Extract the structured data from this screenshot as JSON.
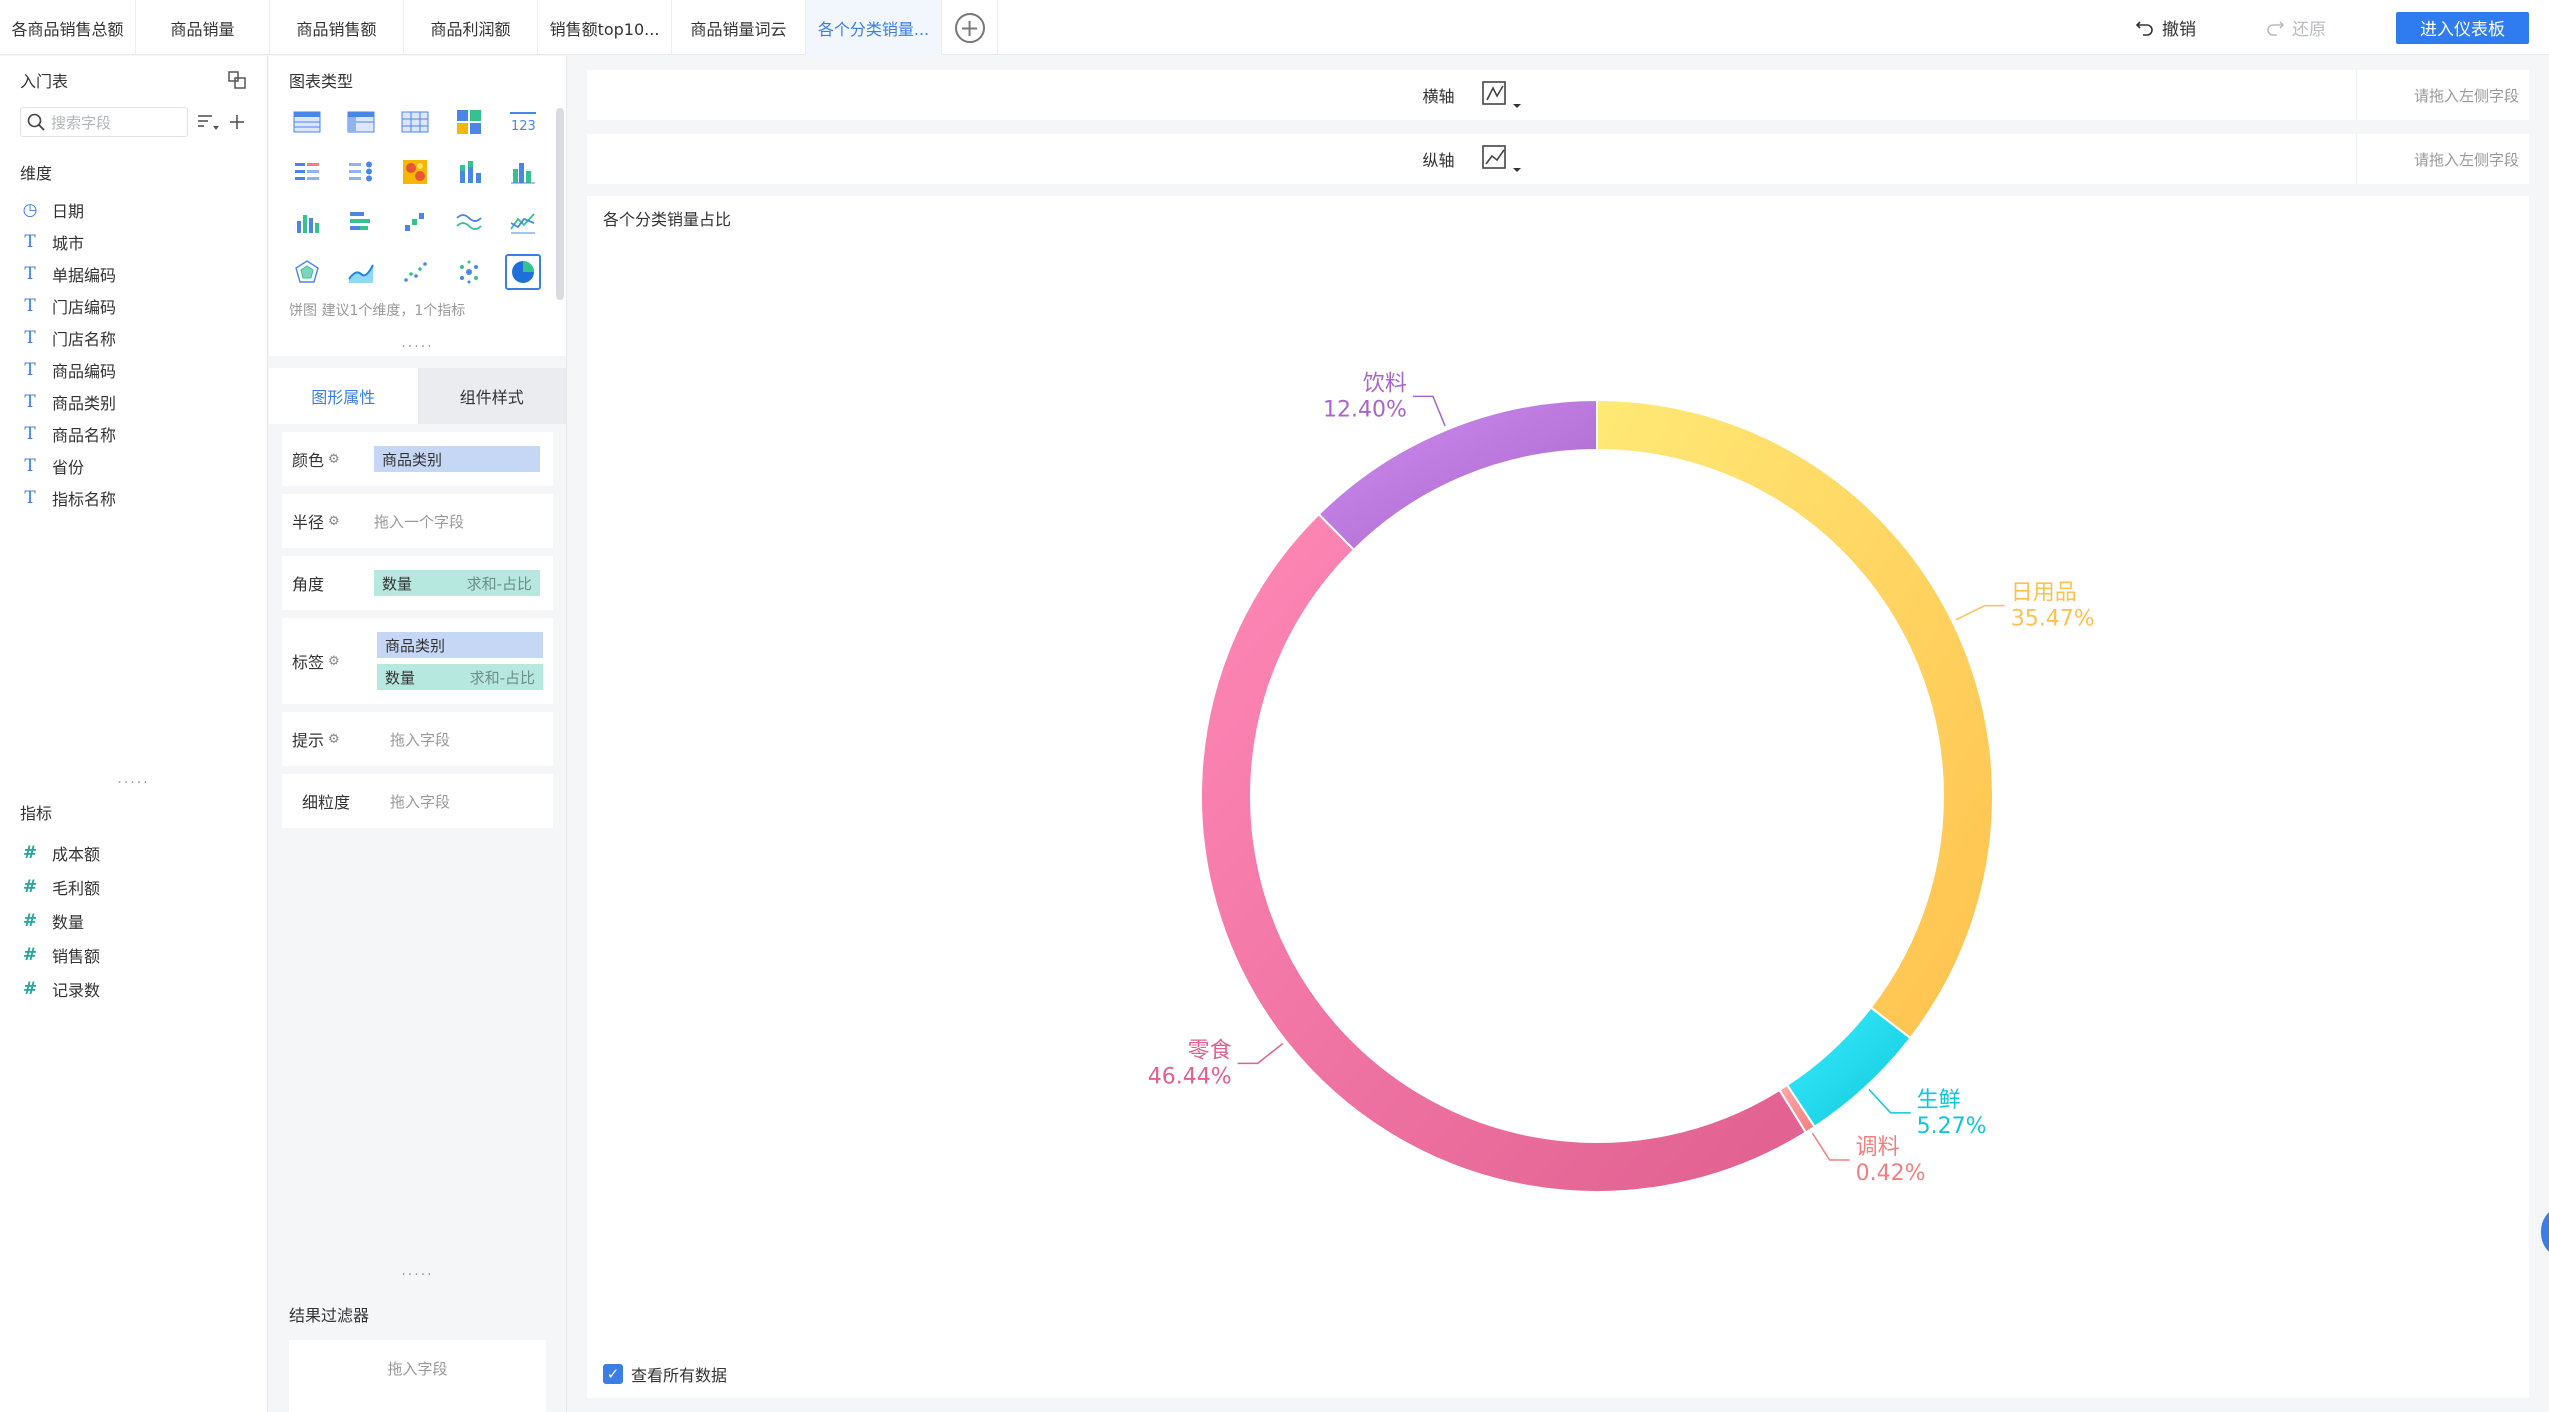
{
  "tabs": [
    "各商品销售总额",
    "商品销量",
    "商品销售额",
    "商品利润额",
    "销售额top10...",
    "商品销量词云",
    "各个分类销量..."
  ],
  "active_tab_index": 6,
  "top_actions": {
    "undo": "撤销",
    "redo": "还原",
    "enter_dashboard": "进入仪表板"
  },
  "left_panel": {
    "table_name": "入门表",
    "search_placeholder": "搜索字段",
    "dimensions_title": "维度",
    "dimensions": [
      {
        "label": "日期",
        "icon": "clock-icon"
      },
      {
        "label": "城市",
        "icon": "text-icon"
      },
      {
        "label": "单据编码",
        "icon": "text-icon"
      },
      {
        "label": "门店编码",
        "icon": "text-icon"
      },
      {
        "label": "门店名称",
        "icon": "text-icon"
      },
      {
        "label": "商品编码",
        "icon": "text-icon"
      },
      {
        "label": "商品类别",
        "icon": "text-icon"
      },
      {
        "label": "商品名称",
        "icon": "text-icon"
      },
      {
        "label": "省份",
        "icon": "text-icon"
      },
      {
        "label": "指标名称",
        "icon": "text-icon"
      }
    ],
    "metrics_title": "指标",
    "metrics": [
      {
        "label": "成本额",
        "icon": "hash-icon"
      },
      {
        "label": "毛利额",
        "icon": "hash-icon"
      },
      {
        "label": "数量",
        "icon": "hash-icon"
      },
      {
        "label": "销售额",
        "icon": "hash-icon"
      },
      {
        "label": "记录数",
        "icon": "hash-icon"
      }
    ]
  },
  "config_panel": {
    "chart_type_title": "图表类型",
    "chart_hint": "饼图 建议1个维度，1个指标",
    "tabs": [
      "图形属性",
      "组件样式"
    ],
    "props": {
      "color": {
        "label": "颜色",
        "value": "商品类别"
      },
      "radius": {
        "label": "半径",
        "placeholder": "拖入一个字段"
      },
      "angle": {
        "label": "角度",
        "value": "数量",
        "agg": "求和-占比"
      },
      "label": {
        "label": "标签",
        "value1": "商品类别",
        "value2": "数量",
        "agg": "求和-占比"
      },
      "tooltip": {
        "label": "提示",
        "placeholder": "拖入字段"
      },
      "granularity": {
        "label": "细粒度",
        "placeholder": "拖入字段"
      }
    },
    "filter_title": "结果过滤器",
    "filter_placeholder": "拖入字段"
  },
  "axes": {
    "x_label": "横轴",
    "y_label": "纵轴",
    "drop_hint": "请拖入左侧字段"
  },
  "canvas": {
    "view_all": "查看所有数据"
  },
  "chart_data": {
    "type": "pie",
    "title": "各个分类销量占比",
    "donut": true,
    "categories": [
      "日用品",
      "生鲜",
      "调料",
      "零食",
      "饮料"
    ],
    "values": [
      35.47,
      5.27,
      0.42,
      46.44,
      12.4
    ],
    "labels": [
      "35.47%",
      "5.27%",
      "0.42%",
      "46.44%",
      "12.40%"
    ],
    "colors": [
      "#FFC14E",
      "#10C6D9",
      "#F08080",
      "#E0608F",
      "#A865C9"
    ]
  }
}
